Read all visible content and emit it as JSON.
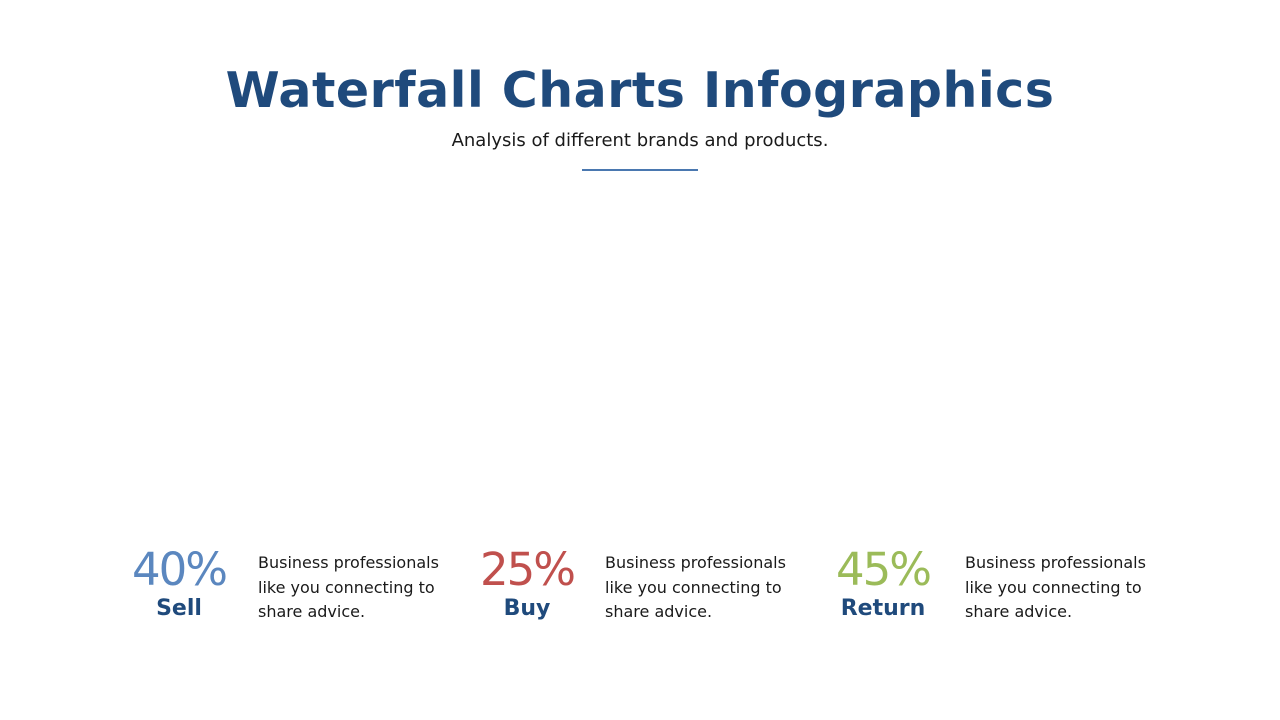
{
  "header": {
    "title": "Waterfall Charts Infographics",
    "subtitle": "Analysis of different brands and products."
  },
  "stats": [
    {
      "value": "40%",
      "label": "Sell",
      "color": "#5b87bf",
      "description": "Business professionals like you connecting to share advice."
    },
    {
      "value": "25%",
      "label": "Buy",
      "color": "#c0504d",
      "description": "Business professionals like you connecting to share advice."
    },
    {
      "value": "45%",
      "label": "Return",
      "color": "#9bbb59",
      "description": "Business professionals like you connecting to share advice."
    }
  ]
}
